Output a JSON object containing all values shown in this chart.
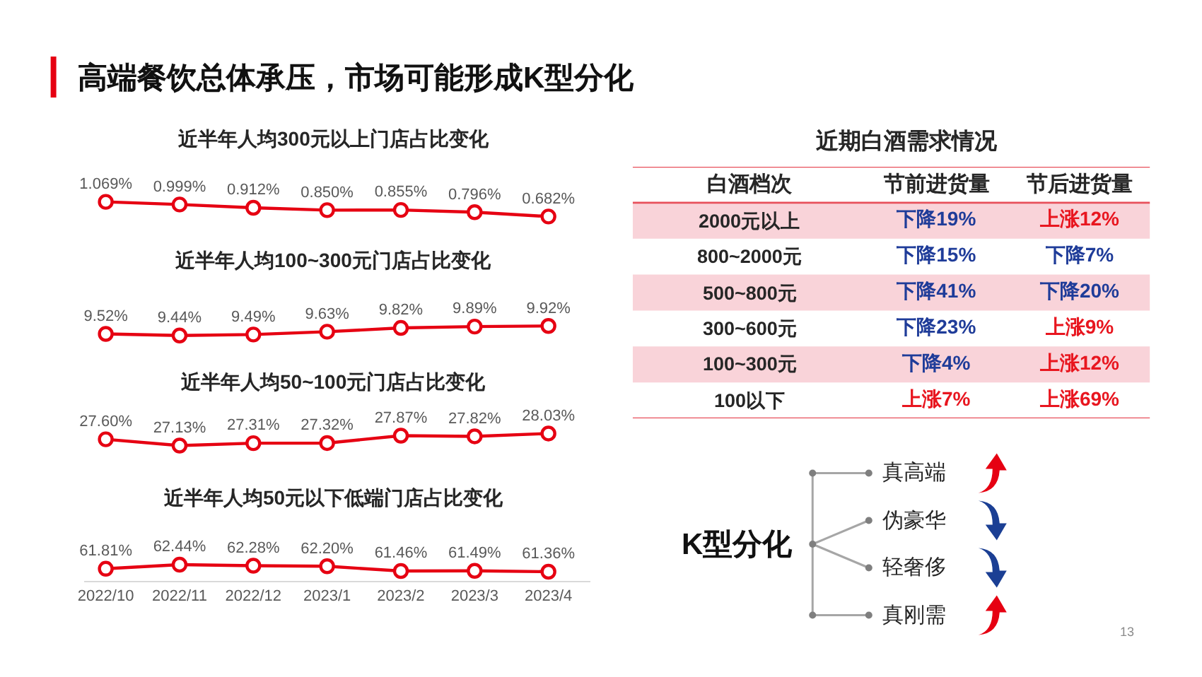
{
  "chart_data": [
    {
      "type": "other",
      "title": "高端餐饮总体承压，市场可能形成K型分化"
    },
    {
      "type": "line",
      "title": "近半年人均300元以上门店占比变化",
      "categories": [
        "2022/10",
        "2022/11",
        "2022/12",
        "2023/1",
        "2023/2",
        "2023/3",
        "2023/4"
      ],
      "values": [
        1.069,
        0.999,
        0.912,
        0.85,
        0.855,
        0.796,
        0.682
      ],
      "value_labels": [
        "1.069%",
        "0.999%",
        "0.912%",
        "0.850%",
        "0.855%",
        "0.796%",
        "0.682%"
      ],
      "color": "#e60012",
      "marker": "circle",
      "tick_labels": false
    },
    {
      "type": "line",
      "title": "近半年人均100~300元门店占比变化",
      "categories": [
        "2022/10",
        "2022/11",
        "2022/12",
        "2023/1",
        "2023/2",
        "2023/3",
        "2023/4"
      ],
      "values": [
        9.52,
        9.44,
        9.49,
        9.63,
        9.82,
        9.89,
        9.92
      ],
      "value_labels": [
        "9.52%",
        "9.44%",
        "9.49%",
        "9.63%",
        "9.82%",
        "9.89%",
        "9.92%"
      ],
      "color": "#e60012",
      "marker": "circle",
      "tick_labels": false
    },
    {
      "type": "line",
      "title": "近半年人均50~100元门店占比变化",
      "categories": [
        "2022/10",
        "2022/11",
        "2022/12",
        "2023/1",
        "2023/2",
        "2023/3",
        "2023/4"
      ],
      "values": [
        27.6,
        27.13,
        27.31,
        27.32,
        27.87,
        27.82,
        28.03
      ],
      "value_labels": [
        "27.60%",
        "27.13%",
        "27.31%",
        "27.32%",
        "27.87%",
        "27.82%",
        "28.03%"
      ],
      "color": "#e60012",
      "marker": "circle",
      "tick_labels": false
    },
    {
      "type": "line",
      "title": "近半年人均50元以下低端门店占比变化",
      "categories": [
        "2022/10",
        "2022/11",
        "2022/12",
        "2023/1",
        "2023/2",
        "2023/3",
        "2023/4"
      ],
      "values": [
        61.81,
        62.44,
        62.28,
        62.2,
        61.46,
        61.49,
        61.36
      ],
      "value_labels": [
        "61.81%",
        "62.44%",
        "62.28%",
        "62.20%",
        "61.46%",
        "61.49%",
        "61.36%"
      ],
      "color": "#e60012",
      "marker": "circle",
      "tick_labels": "x"
    },
    {
      "type": "other",
      "title": "近期白酒需求情况",
      "ylabel": "白酒档次",
      "categories": [
        "节前进货量",
        "节后进货量"
      ],
      "y_categories": [
        "2000元以上",
        "800~2000元",
        "500~800元",
        "300~600元",
        "100~300元",
        "100以下"
      ],
      "cell_labels": [
        [
          "下降19%",
          "上涨12%"
        ],
        [
          "下降15%",
          "下降7%"
        ],
        [
          "下降41%",
          "下降20%"
        ],
        [
          "下降23%",
          "上涨9%"
        ],
        [
          "下降4%",
          "上涨12%"
        ],
        [
          "上涨7%",
          "上涨69%"
        ]
      ],
      "colors": [
        [
          "#1f3c99",
          "#e8161f"
        ],
        [
          "#1f3c99",
          "#1f3c99"
        ],
        [
          "#1f3c99",
          "#1f3c99"
        ],
        [
          "#1f3c99",
          "#e8161f"
        ],
        [
          "#1f3c99",
          "#e8161f"
        ],
        [
          "#e8161f",
          "#e8161f"
        ]
      ]
    },
    {
      "type": "other",
      "title": "K型分化",
      "categories": [
        "真高端",
        "伪豪华",
        "轻奢侈",
        "真刚需"
      ],
      "colors": [
        "#e60012",
        "#1b3f94",
        "#1b3f94",
        "#e60012"
      ],
      "annotations": [
        "13"
      ]
    }
  ]
}
